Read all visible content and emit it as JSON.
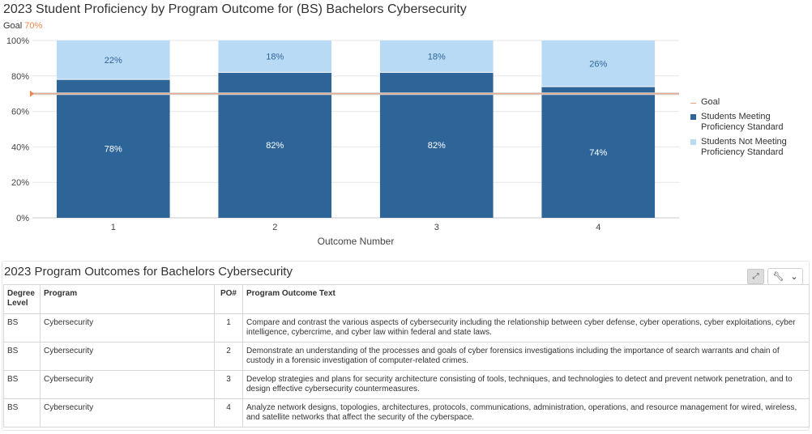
{
  "chart": {
    "title": "2023 Student Proficiency by Program Outcome for (BS) Bachelors Cybersecurity",
    "goal_caption": "Goal",
    "goal_value_text": "70%",
    "x_axis_title": "Outcome Number",
    "legend": [
      {
        "label": "Goal",
        "color": "#f0a07a"
      },
      {
        "label": "Students Meeting Proficiency Standard",
        "color": "#2e6599"
      },
      {
        "label": "Students Not Meeting Proficiency Standard",
        "color": "#b8daf5"
      }
    ]
  },
  "chart_data": {
    "type": "bar",
    "stacked": true,
    "categories": [
      "1",
      "2",
      "3",
      "4"
    ],
    "xlabel": "Outcome Number",
    "ylim": [
      0,
      100
    ],
    "yticks": [
      "0%",
      "20%",
      "40%",
      "60%",
      "80%",
      "100%"
    ],
    "goal": 70,
    "series": [
      {
        "name": "Students Meeting Proficiency Standard",
        "values": [
          78,
          82,
          82,
          74
        ],
        "labels": [
          "78%",
          "82%",
          "82%",
          "74%"
        ],
        "color": "#2e6599"
      },
      {
        "name": "Students Not Meeting Proficiency Standard",
        "values": [
          22,
          18,
          18,
          26
        ],
        "labels": [
          "22%",
          "18%",
          "18%",
          "26%"
        ],
        "color": "#b8daf5"
      }
    ],
    "legend_position": "right",
    "grid": true
  },
  "table": {
    "title": "2023 Program Outcomes for Bachelors Cybersecurity",
    "headers": {
      "level": "Degree Level",
      "program": "Program",
      "po": "PO#",
      "text": "Program Outcome Text"
    },
    "rows": [
      {
        "level": "BS",
        "program": "Cybersecurity",
        "po": "1",
        "text": "Compare and contrast the various aspects of cybersecurity including the relationship between cyber defense, cyber operations, cyber exploitations, cyber intelligence, cybercrime, and cyber law within federal and state laws."
      },
      {
        "level": "BS",
        "program": "Cybersecurity",
        "po": "2",
        "text": "Demonstrate an understanding of the processes and goals of cyber forensics investigations including the importance of search warrants and chain of custody in a forensic investigation of computer-related crimes."
      },
      {
        "level": "BS",
        "program": "Cybersecurity",
        "po": "3",
        "text": "Develop strategies and plans for security architecture consisting of tools, techniques, and technologies to detect and prevent network penetration, and to design effective cybersecurity countermeasures."
      },
      {
        "level": "BS",
        "program": "Cybersecurity",
        "po": "4",
        "text": "Analyze network designs, topologies, architectures, protocols, communications, administration, operations, and resource management for wired, wireless, and satellite networks that affect the security of the cyberspace."
      }
    ],
    "tools": {
      "expand_icon": "expand-icon",
      "wrench_icon": "wrench-icon",
      "chevron_icon": "chevron-down-icon"
    }
  }
}
